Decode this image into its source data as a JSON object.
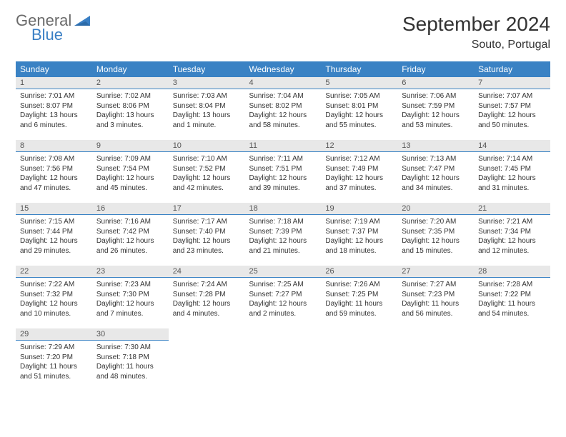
{
  "branding": {
    "word1": "General",
    "word2": "Blue",
    "word1_color": "#6a6a6a",
    "word2_color": "#3a7fc4",
    "icon_color": "#3a7fc4"
  },
  "title": "September 2024",
  "location": "Souto, Portugal",
  "colors": {
    "header_bg": "#3a82c4",
    "header_text": "#ffffff",
    "daynum_bg": "#e8e8e8",
    "daynum_border": "#3a82c4",
    "body_text": "#333333"
  },
  "day_headers": [
    "Sunday",
    "Monday",
    "Tuesday",
    "Wednesday",
    "Thursday",
    "Friday",
    "Saturday"
  ],
  "weeks": [
    [
      {
        "n": "1",
        "sr": "Sunrise: 7:01 AM",
        "ss": "Sunset: 8:07 PM",
        "dl1": "Daylight: 13 hours",
        "dl2": "and 6 minutes."
      },
      {
        "n": "2",
        "sr": "Sunrise: 7:02 AM",
        "ss": "Sunset: 8:06 PM",
        "dl1": "Daylight: 13 hours",
        "dl2": "and 3 minutes."
      },
      {
        "n": "3",
        "sr": "Sunrise: 7:03 AM",
        "ss": "Sunset: 8:04 PM",
        "dl1": "Daylight: 13 hours",
        "dl2": "and 1 minute."
      },
      {
        "n": "4",
        "sr": "Sunrise: 7:04 AM",
        "ss": "Sunset: 8:02 PM",
        "dl1": "Daylight: 12 hours",
        "dl2": "and 58 minutes."
      },
      {
        "n": "5",
        "sr": "Sunrise: 7:05 AM",
        "ss": "Sunset: 8:01 PM",
        "dl1": "Daylight: 12 hours",
        "dl2": "and 55 minutes."
      },
      {
        "n": "6",
        "sr": "Sunrise: 7:06 AM",
        "ss": "Sunset: 7:59 PM",
        "dl1": "Daylight: 12 hours",
        "dl2": "and 53 minutes."
      },
      {
        "n": "7",
        "sr": "Sunrise: 7:07 AM",
        "ss": "Sunset: 7:57 PM",
        "dl1": "Daylight: 12 hours",
        "dl2": "and 50 minutes."
      }
    ],
    [
      {
        "n": "8",
        "sr": "Sunrise: 7:08 AM",
        "ss": "Sunset: 7:56 PM",
        "dl1": "Daylight: 12 hours",
        "dl2": "and 47 minutes."
      },
      {
        "n": "9",
        "sr": "Sunrise: 7:09 AM",
        "ss": "Sunset: 7:54 PM",
        "dl1": "Daylight: 12 hours",
        "dl2": "and 45 minutes."
      },
      {
        "n": "10",
        "sr": "Sunrise: 7:10 AM",
        "ss": "Sunset: 7:52 PM",
        "dl1": "Daylight: 12 hours",
        "dl2": "and 42 minutes."
      },
      {
        "n": "11",
        "sr": "Sunrise: 7:11 AM",
        "ss": "Sunset: 7:51 PM",
        "dl1": "Daylight: 12 hours",
        "dl2": "and 39 minutes."
      },
      {
        "n": "12",
        "sr": "Sunrise: 7:12 AM",
        "ss": "Sunset: 7:49 PM",
        "dl1": "Daylight: 12 hours",
        "dl2": "and 37 minutes."
      },
      {
        "n": "13",
        "sr": "Sunrise: 7:13 AM",
        "ss": "Sunset: 7:47 PM",
        "dl1": "Daylight: 12 hours",
        "dl2": "and 34 minutes."
      },
      {
        "n": "14",
        "sr": "Sunrise: 7:14 AM",
        "ss": "Sunset: 7:45 PM",
        "dl1": "Daylight: 12 hours",
        "dl2": "and 31 minutes."
      }
    ],
    [
      {
        "n": "15",
        "sr": "Sunrise: 7:15 AM",
        "ss": "Sunset: 7:44 PM",
        "dl1": "Daylight: 12 hours",
        "dl2": "and 29 minutes."
      },
      {
        "n": "16",
        "sr": "Sunrise: 7:16 AM",
        "ss": "Sunset: 7:42 PM",
        "dl1": "Daylight: 12 hours",
        "dl2": "and 26 minutes."
      },
      {
        "n": "17",
        "sr": "Sunrise: 7:17 AM",
        "ss": "Sunset: 7:40 PM",
        "dl1": "Daylight: 12 hours",
        "dl2": "and 23 minutes."
      },
      {
        "n": "18",
        "sr": "Sunrise: 7:18 AM",
        "ss": "Sunset: 7:39 PM",
        "dl1": "Daylight: 12 hours",
        "dl2": "and 21 minutes."
      },
      {
        "n": "19",
        "sr": "Sunrise: 7:19 AM",
        "ss": "Sunset: 7:37 PM",
        "dl1": "Daylight: 12 hours",
        "dl2": "and 18 minutes."
      },
      {
        "n": "20",
        "sr": "Sunrise: 7:20 AM",
        "ss": "Sunset: 7:35 PM",
        "dl1": "Daylight: 12 hours",
        "dl2": "and 15 minutes."
      },
      {
        "n": "21",
        "sr": "Sunrise: 7:21 AM",
        "ss": "Sunset: 7:34 PM",
        "dl1": "Daylight: 12 hours",
        "dl2": "and 12 minutes."
      }
    ],
    [
      {
        "n": "22",
        "sr": "Sunrise: 7:22 AM",
        "ss": "Sunset: 7:32 PM",
        "dl1": "Daylight: 12 hours",
        "dl2": "and 10 minutes."
      },
      {
        "n": "23",
        "sr": "Sunrise: 7:23 AM",
        "ss": "Sunset: 7:30 PM",
        "dl1": "Daylight: 12 hours",
        "dl2": "and 7 minutes."
      },
      {
        "n": "24",
        "sr": "Sunrise: 7:24 AM",
        "ss": "Sunset: 7:28 PM",
        "dl1": "Daylight: 12 hours",
        "dl2": "and 4 minutes."
      },
      {
        "n": "25",
        "sr": "Sunrise: 7:25 AM",
        "ss": "Sunset: 7:27 PM",
        "dl1": "Daylight: 12 hours",
        "dl2": "and 2 minutes."
      },
      {
        "n": "26",
        "sr": "Sunrise: 7:26 AM",
        "ss": "Sunset: 7:25 PM",
        "dl1": "Daylight: 11 hours",
        "dl2": "and 59 minutes."
      },
      {
        "n": "27",
        "sr": "Sunrise: 7:27 AM",
        "ss": "Sunset: 7:23 PM",
        "dl1": "Daylight: 11 hours",
        "dl2": "and 56 minutes."
      },
      {
        "n": "28",
        "sr": "Sunrise: 7:28 AM",
        "ss": "Sunset: 7:22 PM",
        "dl1": "Daylight: 11 hours",
        "dl2": "and 54 minutes."
      }
    ],
    [
      {
        "n": "29",
        "sr": "Sunrise: 7:29 AM",
        "ss": "Sunset: 7:20 PM",
        "dl1": "Daylight: 11 hours",
        "dl2": "and 51 minutes."
      },
      {
        "n": "30",
        "sr": "Sunrise: 7:30 AM",
        "ss": "Sunset: 7:18 PM",
        "dl1": "Daylight: 11 hours",
        "dl2": "and 48 minutes."
      },
      {
        "empty": true
      },
      {
        "empty": true
      },
      {
        "empty": true
      },
      {
        "empty": true
      },
      {
        "empty": true
      }
    ]
  ]
}
